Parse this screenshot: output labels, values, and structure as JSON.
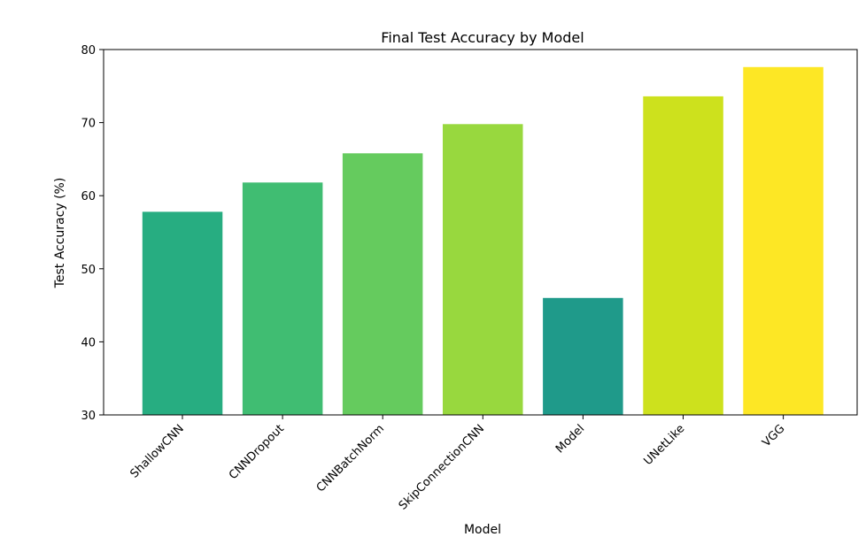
{
  "chart_data": {
    "type": "bar",
    "title": "Final Test Accuracy by Model",
    "xlabel": "Model",
    "ylabel": "Test Accuracy (%)",
    "ylim": [
      30,
      80
    ],
    "yticks": [
      30,
      40,
      50,
      60,
      70,
      80
    ],
    "grid": false,
    "categories": [
      "ShallowCNN",
      "CNNDropout",
      "CNNBatchNorm",
      "SkipConnectionCNN",
      "Model",
      "UNetLike",
      "VGG"
    ],
    "values": [
      57.8,
      61.8,
      65.8,
      69.8,
      46.0,
      73.6,
      77.6
    ],
    "colors": [
      "#27ad81",
      "#40bd72",
      "#65cb5e",
      "#98d83e",
      "#1f9a8a",
      "#cde11d",
      "#fde725"
    ]
  }
}
